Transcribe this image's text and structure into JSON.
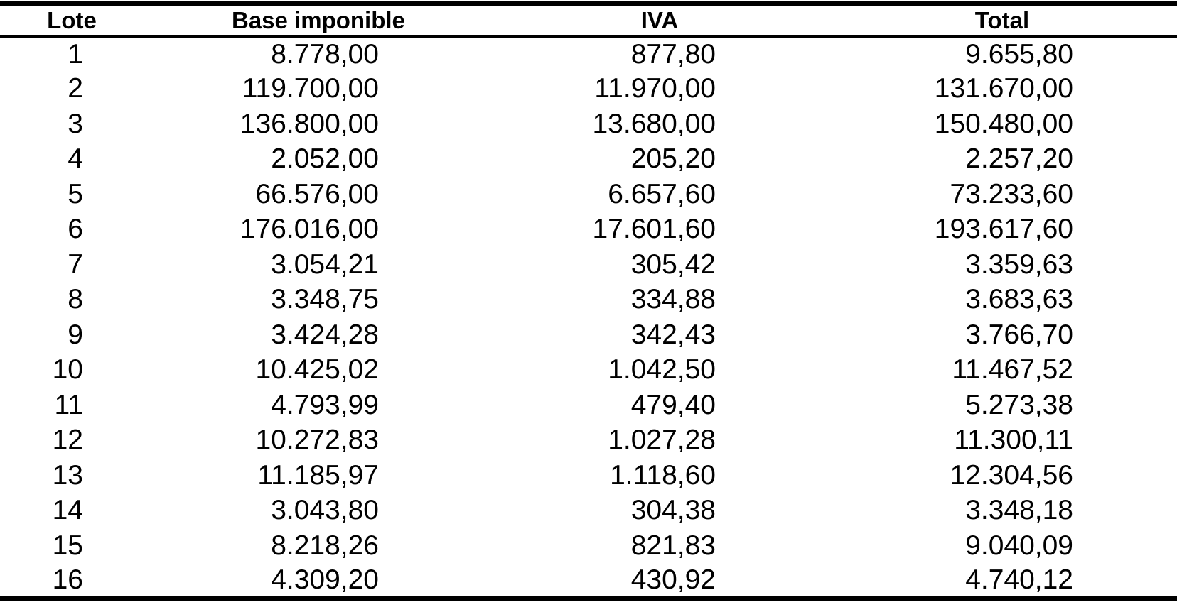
{
  "table": {
    "columns": [
      {
        "key": "lote",
        "label": "Lote"
      },
      {
        "key": "base",
        "label": "Base imponible"
      },
      {
        "key": "iva",
        "label": "IVA"
      },
      {
        "key": "total",
        "label": "Total"
      }
    ],
    "rows": [
      {
        "lote": "1",
        "base": "8.778,00",
        "iva": "877,80",
        "total": "9.655,80"
      },
      {
        "lote": "2",
        "base": "119.700,00",
        "iva": "11.970,00",
        "total": "131.670,00"
      },
      {
        "lote": "3",
        "base": "136.800,00",
        "iva": "13.680,00",
        "total": "150.480,00"
      },
      {
        "lote": "4",
        "base": "2.052,00",
        "iva": "205,20",
        "total": "2.257,20"
      },
      {
        "lote": "5",
        "base": "66.576,00",
        "iva": "6.657,60",
        "total": "73.233,60"
      },
      {
        "lote": "6",
        "base": "176.016,00",
        "iva": "17.601,60",
        "total": "193.617,60"
      },
      {
        "lote": "7",
        "base": "3.054,21",
        "iva": "305,42",
        "total": "3.359,63"
      },
      {
        "lote": "8",
        "base": "3.348,75",
        "iva": "334,88",
        "total": "3.683,63"
      },
      {
        "lote": "9",
        "base": "3.424,28",
        "iva": "342,43",
        "total": "3.766,70"
      },
      {
        "lote": "10",
        "base": "10.425,02",
        "iva": "1.042,50",
        "total": "11.467,52"
      },
      {
        "lote": "11",
        "base": "4.793,99",
        "iva": "479,40",
        "total": "5.273,38"
      },
      {
        "lote": "12",
        "base": "10.272,83",
        "iva": "1.027,28",
        "total": "11.300,11"
      },
      {
        "lote": "13",
        "base": "11.185,97",
        "iva": "1.118,60",
        "total": "12.304,56"
      },
      {
        "lote": "14",
        "base": "3.043,80",
        "iva": "304,38",
        "total": "3.348,18"
      },
      {
        "lote": "15",
        "base": "8.218,26",
        "iva": "821,83",
        "total": "9.040,09"
      },
      {
        "lote": "16",
        "base": "4.309,20",
        "iva": "430,92",
        "total": "4.740,12"
      }
    ],
    "colors": {
      "text": "#000000",
      "background": "#ffffff",
      "rule": "#000000"
    }
  }
}
